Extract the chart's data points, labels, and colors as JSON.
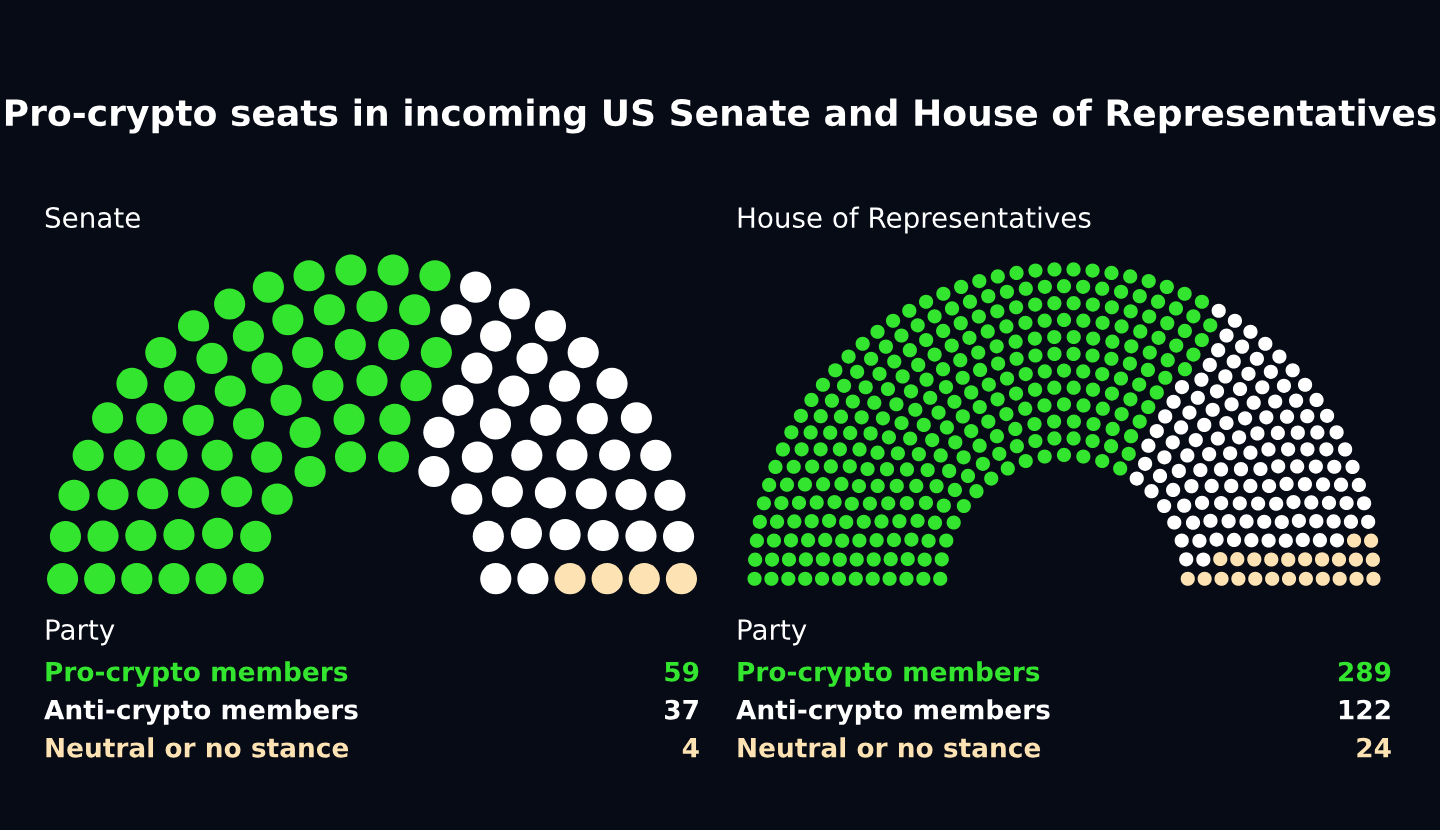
{
  "chart_data": [
    {
      "type": "other",
      "title": "Pro-crypto seats in incoming US Senate and House of Representatives",
      "subtitle": "Senate",
      "legend_title": "Party",
      "data_labels": true,
      "categories": [
        "Pro-crypto members",
        "Anti-crypto members",
        "Neutral or no stance"
      ],
      "values": [
        59,
        37,
        4
      ],
      "colors": [
        "#33e52e",
        "#ffffff",
        "#fde2b4"
      ]
    },
    {
      "type": "other",
      "subtitle": "House of Representatives",
      "legend_title": "Party",
      "data_labels": true,
      "categories": [
        "Pro-crypto members",
        "Anti-crypto members",
        "Neutral or no stance"
      ],
      "values": [
        289,
        122,
        24
      ],
      "colors": [
        "#33e52e",
        "#ffffff",
        "#fde2b4"
      ]
    }
  ]
}
